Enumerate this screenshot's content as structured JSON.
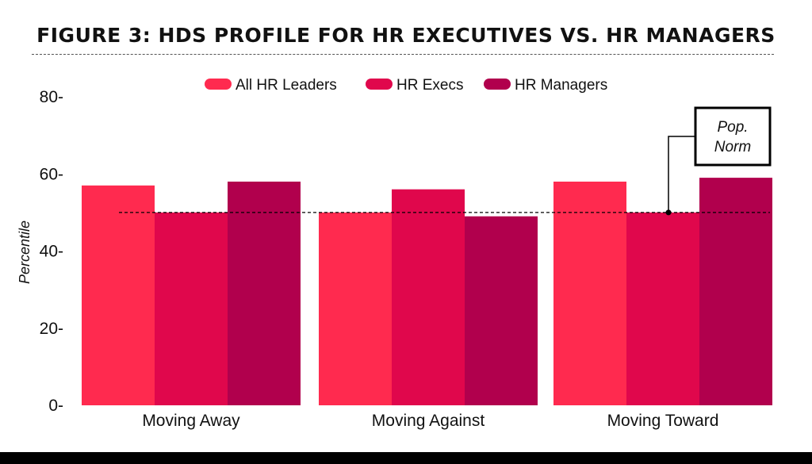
{
  "chart_data": {
    "type": "bar",
    "title": "FIGURE 3: HDS PROFILE FOR HR EXECUTIVES VS. HR MANAGERS",
    "categories": [
      "Moving Away",
      "Moving Against",
      "Moving Toward"
    ],
    "series": [
      {
        "name": "All HR Leaders",
        "values": [
          57,
          50,
          58
        ],
        "color": "#ff2a4f"
      },
      {
        "name": "HR Execs",
        "values": [
          50,
          56,
          50
        ],
        "color": "#e0074c"
      },
      {
        "name": "HR Managers",
        "values": [
          58,
          49,
          59
        ],
        "color": "#b1004d"
      }
    ],
    "ylabel": "Percentile",
    "ylim": [
      0,
      80
    ],
    "yticks": [
      0,
      20,
      40,
      60,
      80
    ],
    "ytick_labels": [
      "0-",
      "20-",
      "40-",
      "60-",
      "80-"
    ],
    "legend_position": "top-center",
    "grid": false,
    "reference_line": {
      "value": 50,
      "style": "dashed",
      "color": "#000000"
    },
    "annotation": {
      "line1": "Pop.",
      "line2": "Norm"
    }
  }
}
